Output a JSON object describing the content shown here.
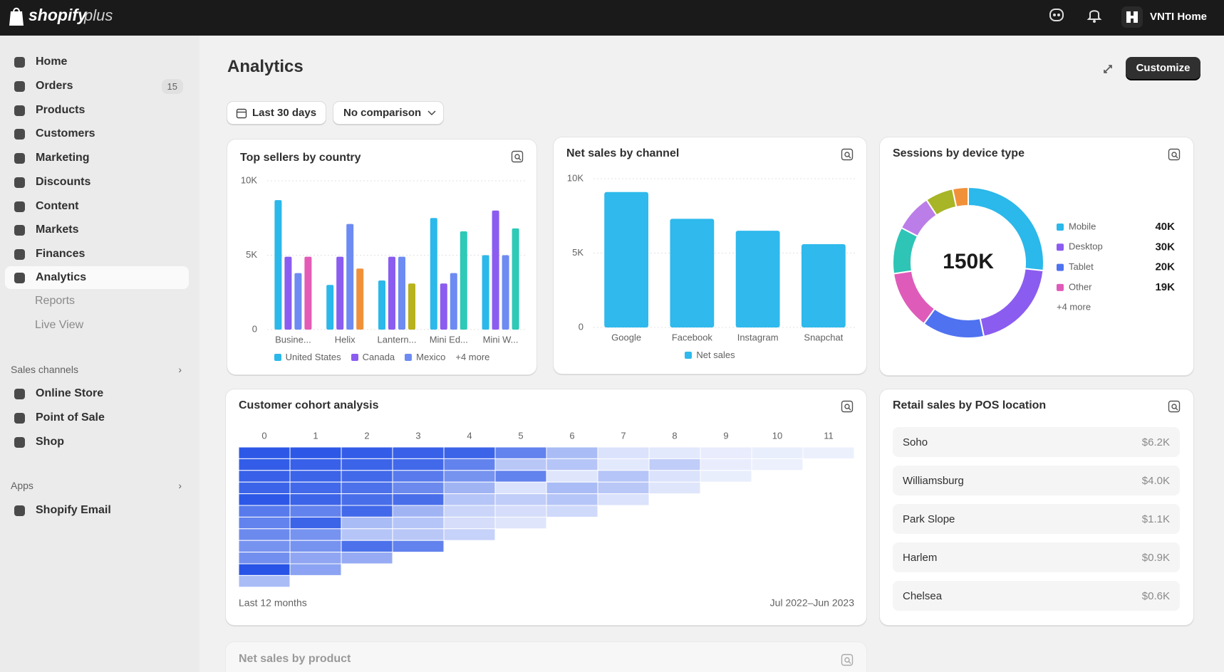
{
  "header": {
    "brand": "shopify",
    "brand_suffix": "plus",
    "store": "VNTI Home"
  },
  "sidebar": {
    "items": [
      {
        "label": "Home"
      },
      {
        "label": "Orders",
        "badge": 15
      },
      {
        "label": "Products"
      },
      {
        "label": "Customers"
      },
      {
        "label": "Marketing"
      },
      {
        "label": "Discounts"
      },
      {
        "label": "Content"
      },
      {
        "label": "Markets"
      },
      {
        "label": "Finances"
      },
      {
        "label": "Analytics"
      }
    ],
    "analytics_sub": [
      "Reports",
      "Live View"
    ],
    "sales_channels": {
      "title": "Sales channels",
      "items": [
        "Online Store",
        "Point of Sale",
        "Shop"
      ]
    },
    "apps": {
      "title": "Apps",
      "items": [
        "Shopify Email"
      ]
    }
  },
  "page": {
    "title": "Analytics",
    "customize": "Customize",
    "date_range": "Last 30 days",
    "comparison": "No comparison"
  },
  "chart_data": [
    {
      "type": "bar",
      "title": "Top sellers by country",
      "categories": [
        "Busine...",
        "Helix",
        "Lantern...",
        "Mini Ed...",
        "Mini W..."
      ],
      "series": [
        {
          "name": "United States",
          "color": "#2bb8ea",
          "values": [
            8700,
            3000,
            3300,
            7500,
            5000
          ]
        },
        {
          "name": "Canada",
          "color": "#8b5cf0",
          "values": [
            4900,
            4900,
            4900,
            3100,
            8000
          ]
        },
        {
          "name": "Mexico",
          "color": "#6d8bf2",
          "values": [
            3800,
            7100,
            4900,
            3800,
            5000
          ]
        },
        {
          "color": "#e35bb6",
          "values": [
            4900,
            null,
            null,
            null,
            null
          ]
        },
        {
          "color": "#f0913a",
          "values": [
            null,
            4100,
            null,
            null,
            null
          ]
        },
        {
          "color": "#b8b21e",
          "values": [
            null,
            null,
            3100,
            null,
            null
          ]
        },
        {
          "color": "#2ec9b7",
          "values": [
            null,
            null,
            null,
            6600,
            6800
          ]
        }
      ],
      "legend_more": "+4 more",
      "ylim": [
        0,
        10000
      ],
      "yticks": [
        {
          "value": 10000,
          "label": "10K"
        },
        {
          "value": 5000,
          "label": "5K"
        },
        0
      ],
      "grid": true
    },
    {
      "type": "bar",
      "title": "Net sales by channel",
      "categories": [
        "Google",
        "Facebook",
        "Instagram",
        "Snapchat"
      ],
      "series": [
        {
          "name": "Net sales",
          "color": "#2fb9ec",
          "values": [
            9100,
            7300,
            6500,
            5600
          ]
        }
      ],
      "ylim": [
        0,
        10000
      ],
      "yticks": [
        {
          "value": 10000,
          "label": "10K"
        },
        {
          "value": 5000,
          "label": "5K"
        },
        0
      ],
      "grid": true
    },
    {
      "type": "pie",
      "title": "Sessions by device type",
      "categories": [
        "Mobile",
        "Desktop",
        "Tablet",
        "Other",
        null,
        null,
        null,
        null
      ],
      "values": [
        40000,
        30000,
        20000,
        19000,
        15000,
        12000,
        9000,
        5000
      ],
      "value_labels": [
        "40K",
        "30K",
        "20K",
        "19K",
        null,
        null,
        null,
        null
      ],
      "colors": [
        "#2bb8ea",
        "#8b5cf0",
        "#4f72f0",
        "#df5bb9",
        "#2ec4b6",
        "#bb7ee8",
        "#a7b526",
        "#f0913a"
      ],
      "center_label": "150K",
      "legend_more": "+4 more"
    },
    {
      "type": "heatmap",
      "title": "Customer cohort analysis",
      "columns": [
        0,
        1,
        2,
        3,
        4,
        5,
        6,
        7,
        8,
        9,
        10,
        11
      ],
      "rows": [
        [
          95,
          95,
          92,
          90,
          88,
          70,
          35,
          12,
          8,
          6,
          5,
          4
        ],
        [
          92,
          90,
          88,
          85,
          70,
          28,
          30,
          8,
          25,
          6,
          4
        ],
        [
          90,
          88,
          85,
          75,
          60,
          70,
          10,
          30,
          12,
          5
        ],
        [
          88,
          85,
          80,
          65,
          40,
          12,
          35,
          28,
          10
        ],
        [
          96,
          88,
          82,
          82,
          30,
          25,
          30,
          12
        ],
        [
          75,
          70,
          85,
          40,
          20,
          15,
          18
        ],
        [
          70,
          88,
          35,
          30,
          15,
          10
        ],
        [
          65,
          60,
          30,
          28,
          22
        ],
        [
          60,
          60,
          80,
          70
        ],
        [
          62,
          48,
          45
        ],
        [
          98,
          50
        ],
        [
          35
        ]
      ],
      "color": "#2350e6",
      "footer_left": "Last 12 months",
      "footer_right": "Jul 2022–Jun 2023"
    }
  ],
  "pos_card": {
    "title": "Retail sales by POS location",
    "rows": [
      {
        "location": "Soho",
        "sales": "$6.2K"
      },
      {
        "location": "Williamsburg",
        "sales": "$4.0K"
      },
      {
        "location": "Park Slope",
        "sales": "$1.1K"
      },
      {
        "location": "Harlem",
        "sales": "$0.9K"
      },
      {
        "location": "Chelsea",
        "sales": "$0.6K"
      }
    ]
  },
  "product_card": {
    "title": "Net sales by product"
  }
}
